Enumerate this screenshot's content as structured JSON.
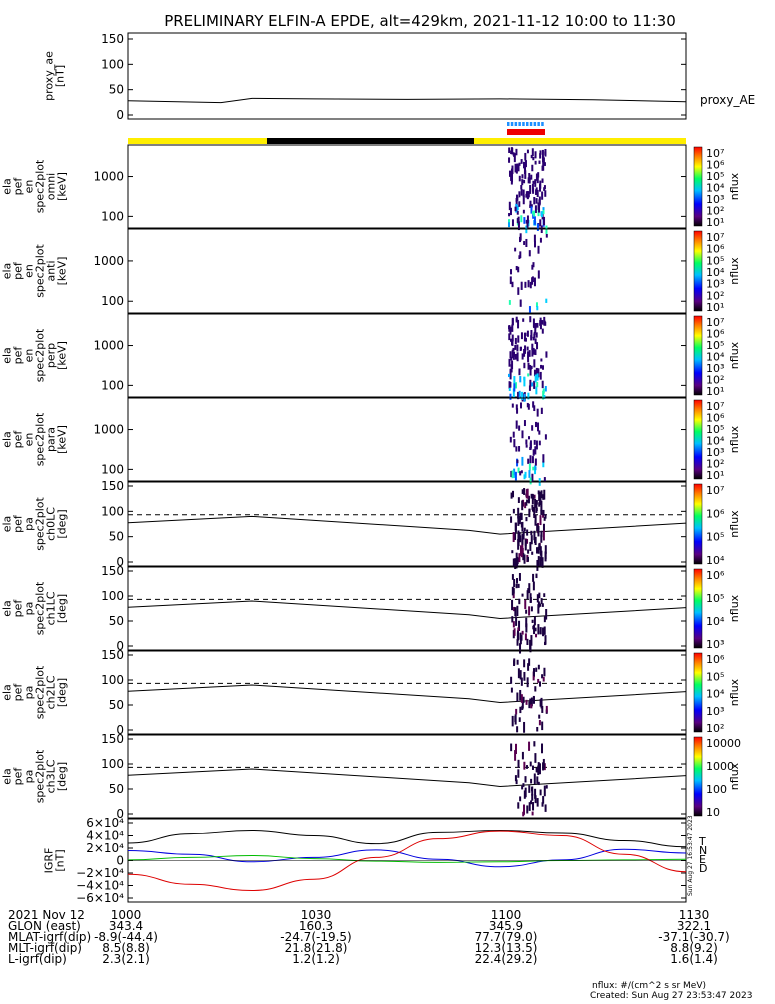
{
  "title": "PRELIMINARY ELFIN-A EPDE, alt=429km, 2021-11-12 10:00 to 11:30",
  "panels": [
    {
      "id": "proxy",
      "ylabel": [
        "proxy_ae",
        "[nT]"
      ],
      "ticks": [
        "150",
        "100",
        "50",
        "0"
      ],
      "side_label": "proxy_AE"
    },
    {
      "id": "omni",
      "ylabel": [
        "ela",
        "pef",
        "en",
        "spec2plot",
        "omni",
        "[keV]"
      ],
      "ticks": [
        "1000",
        "100"
      ],
      "cb_ticks": [
        "10⁷",
        "10⁶",
        "10⁵",
        "10⁴",
        "10³",
        "10²",
        "10¹"
      ],
      "cb_label": "nflux"
    },
    {
      "id": "anti",
      "ylabel": [
        "ela",
        "pef",
        "en",
        "spec2plot",
        "anti",
        "[keV]"
      ],
      "ticks": [
        "1000",
        "100"
      ],
      "cb_ticks": [
        "10⁷",
        "10⁶",
        "10⁵",
        "10⁴",
        "10³",
        "10²",
        "10¹"
      ],
      "cb_label": "nflux"
    },
    {
      "id": "perp",
      "ylabel": [
        "ela",
        "pef",
        "en",
        "spec2plot",
        "perp",
        "[keV]"
      ],
      "ticks": [
        "1000",
        "100"
      ],
      "cb_ticks": [
        "10⁷",
        "10⁶",
        "10⁵",
        "10⁴",
        "10³",
        "10²",
        "10¹"
      ],
      "cb_label": "nflux"
    },
    {
      "id": "para",
      "ylabel": [
        "ela",
        "pef",
        "en",
        "spec2plot",
        "para",
        "[keV]"
      ],
      "ticks": [
        "1000",
        "100"
      ],
      "cb_ticks": [
        "10⁷",
        "10⁶",
        "10⁵",
        "10⁴",
        "10³",
        "10²",
        "10¹"
      ],
      "cb_label": "nflux"
    },
    {
      "id": "ch0",
      "ylabel": [
        "ela",
        "pef",
        "pa",
        "spec2plot",
        "ch0LC",
        "[deg]"
      ],
      "ticks": [
        "150",
        "100",
        "50",
        "0"
      ],
      "cb_ticks": [
        "10⁷",
        "10⁶",
        "10⁵",
        "10⁴"
      ],
      "cb_label": "nflux"
    },
    {
      "id": "ch1",
      "ylabel": [
        "ela",
        "pef",
        "pa",
        "spec2plot",
        "ch1LC",
        "[deg]"
      ],
      "ticks": [
        "150",
        "100",
        "50",
        "0"
      ],
      "cb_ticks": [
        "10⁶",
        "10⁵",
        "10⁴",
        "10³"
      ],
      "cb_label": "nflux"
    },
    {
      "id": "ch2",
      "ylabel": [
        "ela",
        "pef",
        "pa",
        "spec2plot",
        "ch2LC",
        "[deg]"
      ],
      "ticks": [
        "150",
        "100",
        "50",
        "0"
      ],
      "cb_ticks": [
        "10⁶",
        "10⁵",
        "10⁴",
        "10³",
        "10²"
      ],
      "cb_label": "nflux"
    },
    {
      "id": "ch3",
      "ylabel": [
        "ela",
        "pef",
        "pa",
        "spec2plot",
        "ch3LC",
        "[deg]"
      ],
      "ticks": [
        "150",
        "100",
        "50",
        "0"
      ],
      "cb_ticks": [
        "10000",
        "1000",
        "100",
        "10"
      ],
      "cb_label": "nflux"
    },
    {
      "id": "igrf",
      "ylabel": [
        "IGRF",
        "[nT]"
      ],
      "ticks": [
        "6×10⁴",
        "4×10⁴",
        "2×10⁴",
        "0",
        "−2×10⁴",
        "−4×10⁴",
        "−6×10⁴"
      ],
      "legend": [
        "T",
        "N",
        "E",
        "D"
      ],
      "side_text": "Sun Aug 27 16:53:47 2023"
    }
  ],
  "colors": {
    "T": "#000000",
    "N": "#0000dd",
    "E": "#00bb00",
    "D": "#dd0000",
    "day": "#ffee00",
    "night": "#000000",
    "science": "#ee0000",
    "marks": "#1e90ff"
  },
  "footer": {
    "rows": [
      {
        "label": "2021 Nov 12",
        "values": [
          "1000",
          "1030",
          "1100",
          "1130"
        ]
      },
      {
        "label": "GLON (east)",
        "values": [
          "343.4",
          "160.3",
          "345.9",
          "322.1"
        ]
      },
      {
        "label": "MLAT-igrf(dip)",
        "values": [
          "-8.9(-44.4)",
          "-24.7(-19.5)",
          "77.7(79.0)",
          "-37.1(-30.7)"
        ]
      },
      {
        "label": "MLT-igrf(dip)",
        "values": [
          "8.5(8.8)",
          "21.8(21.8)",
          "12.3(13.5)",
          "8.8(9.2)"
        ]
      },
      {
        "label": "L-igrf(dip)",
        "values": [
          "2.3(2.1)",
          "1.2(1.2)",
          "22.4(29.2)",
          "1.6(1.4)"
        ]
      }
    ],
    "units": "nflux: #/(cm^2 s sr MeV)",
    "created": "Created: Sun Aug 27 23:53:47 2023"
  },
  "chart_data": {
    "type": "line",
    "x_range": [
      "10:00",
      "11:30"
    ],
    "proxy_ae": {
      "x": [
        "10:00",
        "10:15",
        "10:20",
        "10:30",
        "10:45",
        "11:00",
        "11:15",
        "11:30"
      ],
      "y": [
        30,
        26,
        35,
        34,
        33,
        34,
        32,
        28
      ],
      "ylim": [
        0,
        160
      ]
    },
    "igrf": {
      "x": [
        "10:00",
        "10:10",
        "10:20",
        "10:30",
        "10:40",
        "10:50",
        "11:00",
        "11:10",
        "11:20",
        "11:30"
      ],
      "ylim": [
        -60000,
        60000
      ],
      "series": [
        {
          "name": "T",
          "y": [
            28000,
            43000,
            48000,
            40000,
            27000,
            45000,
            48000,
            44000,
            32000,
            22000
          ]
        },
        {
          "name": "N",
          "y": [
            16000,
            10000,
            -2000,
            5000,
            17000,
            2000,
            -10000,
            1000,
            18000,
            12000
          ]
        },
        {
          "name": "E",
          "y": [
            1000,
            5000,
            8000,
            3000,
            -1000,
            -3000,
            -2000,
            0,
            1000,
            2000
          ]
        },
        {
          "name": "D",
          "y": [
            -22000,
            -38000,
            -48000,
            -30000,
            5000,
            35000,
            47000,
            40000,
            10000,
            -18000
          ]
        }
      ]
    },
    "lc_line": {
      "x": [
        "10:00",
        "10:20",
        "10:55",
        "11:00",
        "11:30"
      ],
      "y": [
        93,
        108,
        75,
        66,
        92
      ],
      "dashed_y": 112
    }
  }
}
